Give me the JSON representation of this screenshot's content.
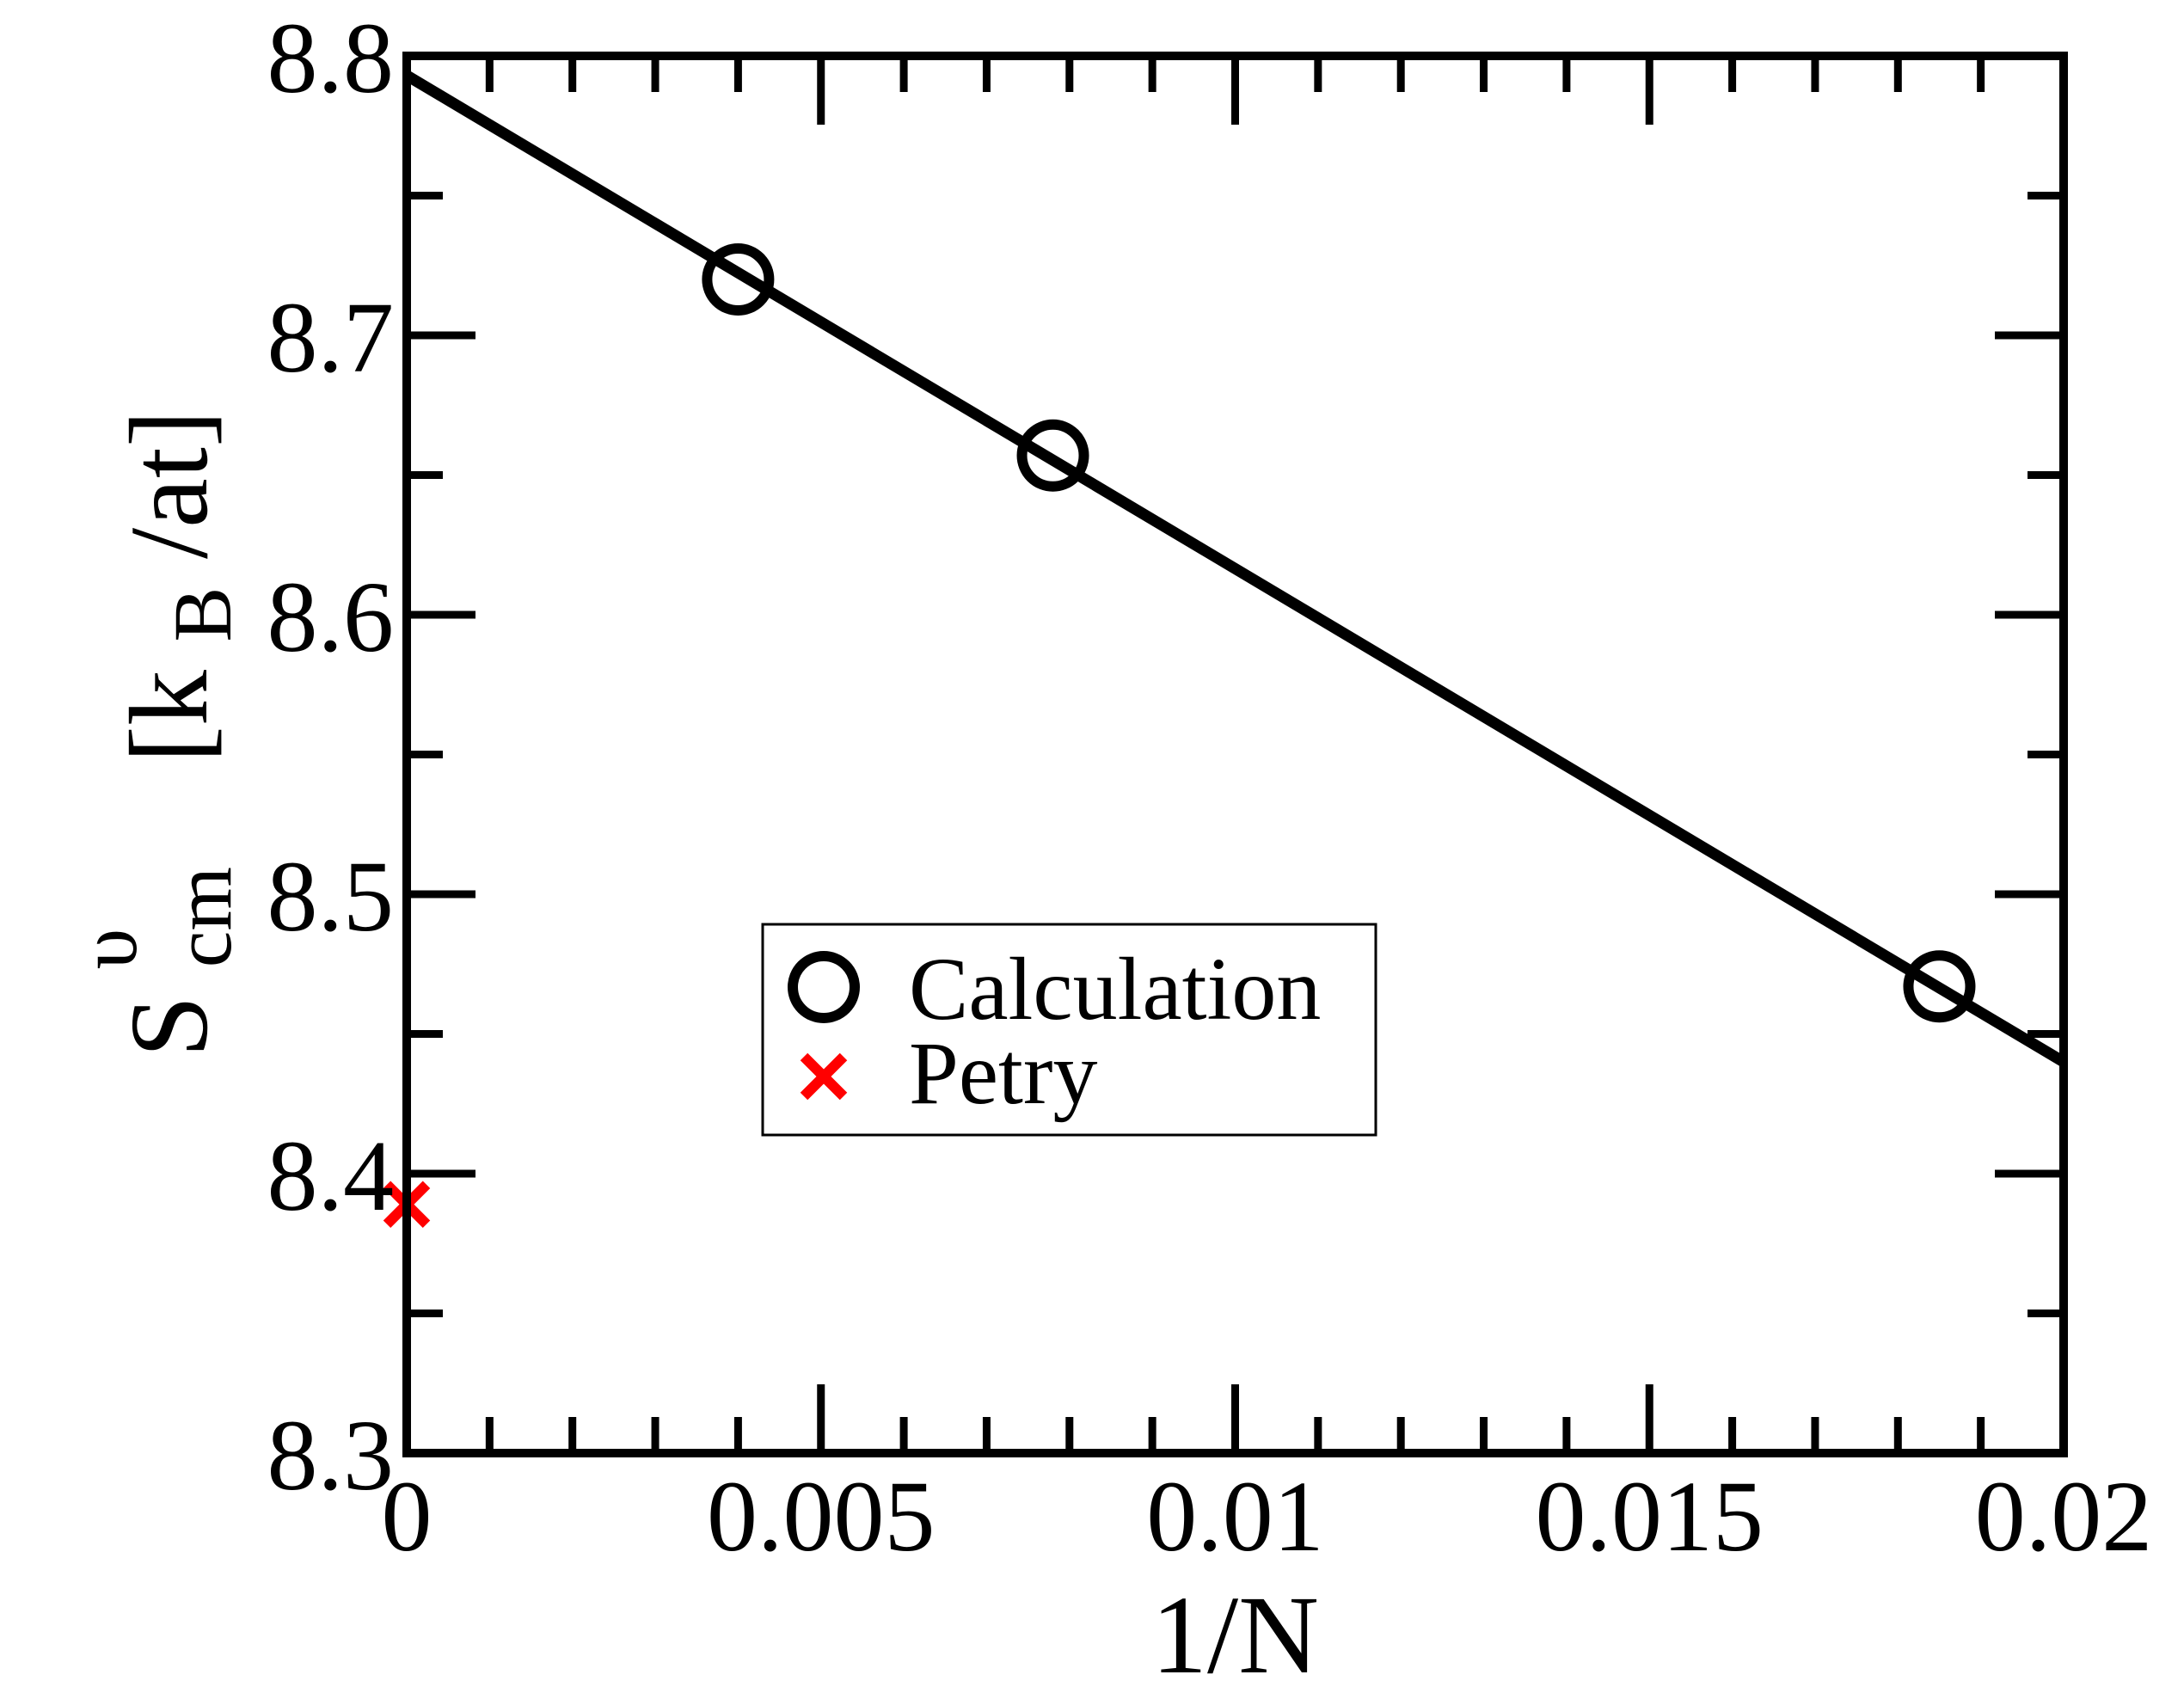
{
  "chart_data": {
    "type": "scatter",
    "xlabel": "1/N",
    "ylabel": {
      "main": "S",
      "superscript": "υ",
      "subscript": "cm",
      "unit_open": "[k",
      "unit_subscript": "B",
      "unit_close": "/at]"
    },
    "xlim": [
      0,
      0.02
    ],
    "ylim": [
      8.3,
      8.8
    ],
    "x_ticks": [
      0,
      0.005,
      0.01,
      0.015,
      0.02
    ],
    "x_tick_labels": [
      "0",
      "0.005",
      "0.01",
      "0.015",
      "0.02"
    ],
    "y_ticks": [
      8.3,
      8.4,
      8.5,
      8.6,
      8.7,
      8.8
    ],
    "y_tick_labels": [
      "8.3",
      "8.4",
      "8.5",
      "8.6",
      "8.7",
      "8.8"
    ],
    "x_minor_step": 0.001,
    "y_minor_step": 0.05,
    "grid": false,
    "legend_position": "center-left",
    "series": [
      {
        "name": "Calculation",
        "marker": "circle",
        "color": "#000000",
        "points": [
          {
            "x": 0.004,
            "y": 8.72
          },
          {
            "x": 0.0078,
            "y": 8.657
          },
          {
            "x": 0.0185,
            "y": 8.467
          }
        ]
      },
      {
        "name": "Petry",
        "marker": "x",
        "color": "#ff0000",
        "points": [
          {
            "x": 0.0,
            "y": 8.389
          }
        ]
      }
    ],
    "fit_line": {
      "color": "#000000",
      "points": [
        {
          "x": 0.0,
          "y": 8.793
        },
        {
          "x": 0.02,
          "y": 8.44
        }
      ]
    }
  }
}
